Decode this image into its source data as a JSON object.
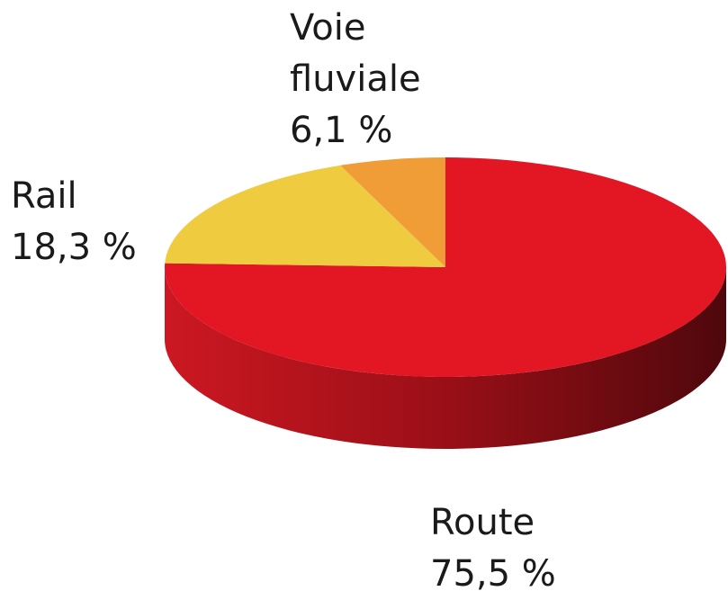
{
  "chart_data": {
    "type": "pie",
    "categories": [
      "Route",
      "Rail",
      "Voie fluviale"
    ],
    "values": [
      75.5,
      18.3,
      6.1
    ],
    "value_labels": [
      "75,5 %",
      "18,3 %",
      "6,1 %"
    ],
    "colors": [
      "#e31624",
      "#efcc3f",
      "#f09d38"
    ]
  }
}
